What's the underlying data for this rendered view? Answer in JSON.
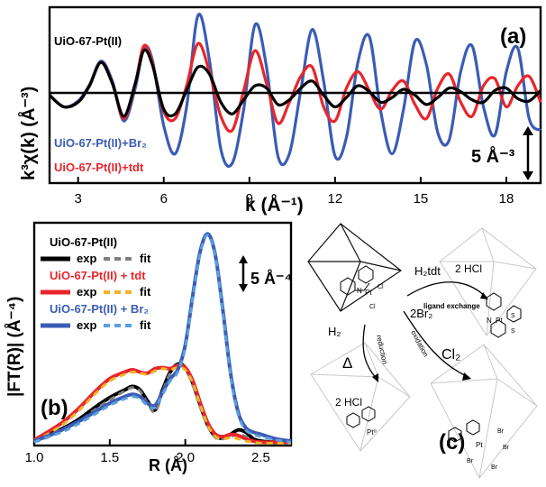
{
  "panel_a": {
    "label": "(a)",
    "ylabel": "k³χ(k) (Å⁻³)",
    "xlabel": "k (Å⁻¹)",
    "legend": {
      "black": "UiO-67-Pt(II)",
      "blue": "UiO-67-Pt(II)+Br₂",
      "red": "UiO-67-Pt(II)+tdt"
    },
    "scale_bar": "5 Å⁻³"
  },
  "panel_b": {
    "label": "(b)",
    "ylabel": "|FT(R)| (Å⁻⁴)",
    "xlabel": "R (Å)",
    "scale_bar": "5 Å⁻⁴",
    "exp_label": "exp",
    "fit_label": "fit",
    "groups": [
      {
        "name": "UiO-67-Pt(II)",
        "color": "#000000",
        "fit_color": "#808080"
      },
      {
        "name": "UiO-67-Pt(II) + tdt",
        "color": "#e8262b",
        "fit_color": "#f0b428"
      },
      {
        "name": "UiO-67-Pt(II) + Br₂",
        "color": "#3b5cb5",
        "fit_color": "#5aa0dc"
      }
    ]
  },
  "panel_c": {
    "label": "(c)",
    "h2tdt": "H₂tdt",
    "hcl_top": "2 HCl",
    "ligand_exchange": "ligand exchange",
    "h2": "H₂",
    "delta": "Δ",
    "reduction": "reduction",
    "hcl_bottom": "2 HCl",
    "br2": "2Br₂",
    "oxidation": "oxidation",
    "cl2": "Cl₂",
    "atoms": {
      "pt": "Pt",
      "pt0": "Pt⁰",
      "n": "N",
      "cl": "Cl",
      "s": "S",
      "br": "Br"
    }
  },
  "chart_data": [
    {
      "type": "line",
      "title": "",
      "xlabel": "k (Å⁻¹)",
      "ylabel": "k³χ(k) (Å⁻³)",
      "xlim": [
        2,
        19.2
      ],
      "ylim": [
        -7.5,
        7.5
      ],
      "xticks": [
        3,
        6,
        9,
        12,
        15,
        18
      ],
      "series": [
        {
          "name": "UiO-67-Pt(II)",
          "color": "#000000",
          "x": [
            2,
            2.5,
            3,
            3.4,
            3.8,
            4.2,
            4.6,
            5,
            5.3,
            5.6,
            6,
            6.4,
            6.8,
            7.2,
            7.6,
            8,
            8.4,
            8.8,
            9.2,
            9.6,
            10,
            10.4,
            10.8,
            11.2,
            11.6,
            12,
            12.4,
            12.8,
            13.2,
            13.6,
            14,
            14.4,
            14.8,
            15.2,
            15.6,
            16,
            16.4,
            16.8,
            17.2,
            17.6,
            18,
            18.4,
            18.8,
            19.2
          ],
          "y": [
            0,
            -1.0,
            -0.6,
            0.8,
            2.8,
            1.0,
            -1.8,
            1.0,
            3.8,
            2.6,
            -1.2,
            -1.6,
            0.4,
            2.4,
            1.8,
            -0.6,
            -1.6,
            -0.4,
            0.8,
            0.6,
            -0.8,
            -0.4,
            0.6,
            1.2,
            0,
            -1.0,
            -0.2,
            0.8,
            0.3,
            -0.6,
            -0.2,
            0.5,
            0,
            -0.8,
            -0.2,
            0.6,
            0.3,
            -0.4,
            -0.6,
            0.4,
            0.6,
            -0.3,
            -0.5,
            0.4
          ]
        },
        {
          "name": "UiO-67-Pt(II)+Br₂",
          "color": "#3b5cb5",
          "x": [
            2,
            2.5,
            3,
            3.4,
            3.8,
            4.2,
            4.6,
            5,
            5.3,
            5.6,
            6,
            6.4,
            6.8,
            7.2,
            7.6,
            8,
            8.4,
            8.8,
            9.2,
            9.6,
            10,
            10.4,
            10.8,
            11.2,
            11.6,
            12,
            12.4,
            12.8,
            13.2,
            13.6,
            14,
            14.4,
            14.8,
            15.2,
            15.6,
            16,
            16.4,
            16.8,
            17.2,
            17.6,
            18,
            18.4,
            18.8,
            19.2
          ],
          "y": [
            0,
            -1.0,
            -0.5,
            0.9,
            2.9,
            1.2,
            -2.2,
            0.6,
            4.0,
            3.0,
            -2.6,
            -5.0,
            -1.0,
            6.8,
            3.0,
            -4.6,
            -5.8,
            -1.2,
            6.0,
            2.4,
            -5.2,
            -5.0,
            0.4,
            5.6,
            1.2,
            -5.2,
            -3.6,
            2.8,
            5.0,
            -1.4,
            -5.0,
            -1.2,
            4.6,
            2.6,
            -3.2,
            -3.8,
            2.0,
            4.2,
            -1.0,
            -3.4,
            2.0,
            4.0,
            -2.0,
            -3.0
          ]
        },
        {
          "name": "UiO-67-Pt(II)+tdt",
          "color": "#e8262b",
          "x": [
            2,
            2.5,
            3,
            3.4,
            3.8,
            4.2,
            4.6,
            5,
            5.3,
            5.6,
            6,
            6.4,
            6.8,
            7.2,
            7.6,
            8,
            8.4,
            8.8,
            9.2,
            9.6,
            10,
            10.4,
            10.8,
            11.2,
            11.6,
            12,
            12.4,
            12.8,
            13.2,
            13.6,
            14,
            14.4,
            14.8,
            15.2,
            15.6,
            16,
            16.4,
            16.8,
            17.2,
            17.6,
            18,
            18.4,
            18.8,
            19.2
          ],
          "y": [
            0,
            -1.0,
            -0.6,
            0.8,
            2.8,
            1.0,
            -2.0,
            1.0,
            4.2,
            2.8,
            -1.4,
            -2.0,
            0.8,
            4.4,
            2.0,
            -1.8,
            -3.0,
            0.4,
            3.8,
            1.0,
            -2.4,
            -0.6,
            1.6,
            2.4,
            -1.0,
            -2.2,
            0.6,
            2.0,
            0.4,
            -1.2,
            0.4,
            1.2,
            -0.8,
            -2.0,
            0.6,
            1.8,
            -0.6,
            -1.8,
            0.8,
            1.4,
            -1.0,
            0.8,
            1.6,
            -0.6
          ]
        }
      ]
    },
    {
      "type": "line",
      "title": "",
      "xlabel": "R (Å)",
      "ylabel": "|FT(R)| (Å⁻⁴)",
      "xlim": [
        1.0,
        2.7
      ],
      "ylim": [
        0,
        20
      ],
      "xticks": [
        1.0,
        1.5,
        2.0,
        2.5
      ],
      "series": [
        {
          "name": "UiO-67-Pt(II) exp",
          "color": "#000000",
          "x": [
            1.0,
            1.1,
            1.2,
            1.3,
            1.4,
            1.5,
            1.6,
            1.65,
            1.7,
            1.75,
            1.8,
            1.85,
            1.9,
            1.95,
            2.0,
            2.05,
            2.1,
            2.15,
            2.2,
            2.25,
            2.3,
            2.35,
            2.4,
            2.45,
            2.5,
            2.6,
            2.7
          ],
          "y": [
            0.4,
            1.0,
            1.6,
            2.4,
            3.4,
            4.3,
            5.0,
            5.3,
            5.0,
            4.0,
            3.2,
            5.0,
            6.6,
            7.3,
            7.0,
            5.6,
            3.6,
            1.8,
            0.8,
            0.7,
            1.0,
            1.4,
            1.2,
            0.6,
            0.4,
            0.3,
            0.3
          ]
        },
        {
          "name": "UiO-67-Pt(II) fit",
          "color": "#808080",
          "x": [
            1.0,
            1.1,
            1.2,
            1.3,
            1.4,
            1.5,
            1.6,
            1.65,
            1.7,
            1.75,
            1.8,
            1.85,
            1.9,
            1.95,
            2.0,
            2.05,
            2.1,
            2.15,
            2.2,
            2.25,
            2.3,
            2.35,
            2.4,
            2.45,
            2.5,
            2.6,
            2.7
          ],
          "y": [
            0.3,
            0.8,
            1.4,
            2.2,
            3.2,
            4.1,
            4.9,
            5.2,
            4.9,
            3.8,
            3.0,
            4.8,
            6.5,
            7.2,
            6.9,
            5.4,
            3.4,
            1.7,
            0.7,
            0.6,
            0.8,
            1.0,
            0.8,
            0.4,
            0.3,
            0.2,
            0.2
          ]
        },
        {
          "name": "UiO-67-Pt(II) + tdt exp",
          "color": "#e8262b",
          "x": [
            1.0,
            1.1,
            1.2,
            1.3,
            1.4,
            1.5,
            1.6,
            1.65,
            1.7,
            1.75,
            1.8,
            1.85,
            1.9,
            1.95,
            2.0,
            2.05,
            2.1,
            2.15,
            2.2,
            2.25,
            2.3,
            2.35,
            2.4,
            2.45,
            2.5,
            2.6,
            2.7
          ],
          "y": [
            0.5,
            1.3,
            2.2,
            3.4,
            4.8,
            6.0,
            6.6,
            6.8,
            6.6,
            6.5,
            6.9,
            7.0,
            6.9,
            7.2,
            7.0,
            5.8,
            3.8,
            2.0,
            1.0,
            0.8,
            1.0,
            0.9,
            0.6,
            0.4,
            0.3,
            0.3,
            0.3
          ]
        },
        {
          "name": "UiO-67-Pt(II) + tdt fit",
          "color": "#f0b428",
          "x": [
            1.0,
            1.1,
            1.2,
            1.3,
            1.4,
            1.5,
            1.6,
            1.65,
            1.7,
            1.75,
            1.8,
            1.85,
            1.9,
            1.95,
            2.0,
            2.05,
            2.1,
            2.15,
            2.2,
            2.25,
            2.3,
            2.35,
            2.4,
            2.45,
            2.5,
            2.6,
            2.7
          ],
          "y": [
            0.4,
            1.1,
            2.0,
            3.2,
            4.6,
            5.8,
            6.4,
            6.6,
            6.5,
            6.4,
            6.7,
            6.9,
            6.8,
            7.0,
            6.8,
            5.6,
            3.6,
            1.8,
            0.8,
            0.6,
            0.7,
            0.6,
            0.4,
            0.3,
            0.2,
            0.2,
            0.2
          ]
        },
        {
          "name": "UiO-67-Pt(II) + Br₂ exp",
          "color": "#3b5cb5",
          "x": [
            1.0,
            1.1,
            1.2,
            1.3,
            1.4,
            1.5,
            1.6,
            1.65,
            1.7,
            1.75,
            1.8,
            1.85,
            1.9,
            1.95,
            2.0,
            2.05,
            2.1,
            2.15,
            2.2,
            2.25,
            2.3,
            2.35,
            2.4,
            2.45,
            2.5,
            2.6,
            2.7
          ],
          "y": [
            0.4,
            0.9,
            1.5,
            2.2,
            3.0,
            3.8,
            4.4,
            4.6,
            4.4,
            3.8,
            3.6,
            4.8,
            6.0,
            6.8,
            9.0,
            13.5,
            17.5,
            19.0,
            17.0,
            12.0,
            6.5,
            3.0,
            1.6,
            1.2,
            1.0,
            0.6,
            0.4
          ]
        },
        {
          "name": "UiO-67-Pt(II) + Br₂ fit",
          "color": "#5aa0dc",
          "x": [
            1.0,
            1.1,
            1.2,
            1.3,
            1.4,
            1.5,
            1.6,
            1.65,
            1.7,
            1.75,
            1.8,
            1.85,
            1.9,
            1.95,
            2.0,
            2.05,
            2.1,
            2.15,
            2.2,
            2.25,
            2.3,
            2.35,
            2.4,
            2.45,
            2.5,
            2.6,
            2.7
          ],
          "y": [
            0.3,
            0.8,
            1.3,
            2.0,
            2.8,
            3.6,
            4.2,
            4.4,
            4.2,
            3.6,
            3.4,
            4.6,
            5.8,
            6.6,
            8.8,
            13.3,
            17.3,
            18.9,
            16.9,
            11.8,
            6.3,
            2.8,
            1.4,
            1.0,
            0.8,
            0.5,
            0.3
          ]
        }
      ]
    }
  ]
}
